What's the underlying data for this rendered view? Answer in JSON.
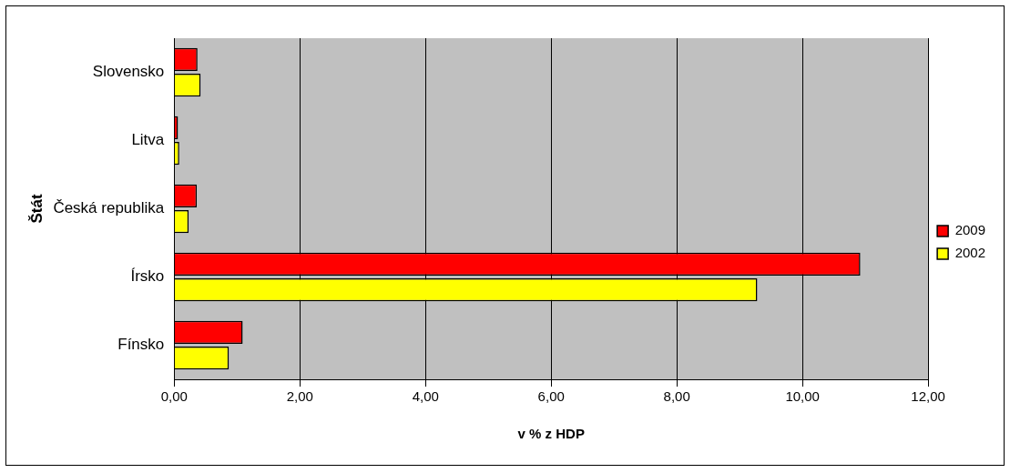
{
  "chart_data": {
    "type": "bar",
    "orientation": "horizontal",
    "xlabel": "v % z HDP",
    "ylabel": "Štát",
    "categories": [
      "Slovensko",
      "Litva",
      "Česká republika",
      "Írsko",
      "Fínsko"
    ],
    "series": [
      {
        "name": "2009",
        "color": "#ff0000",
        "values": [
          0.37,
          0.06,
          0.36,
          10.92,
          1.09
        ]
      },
      {
        "name": "2002",
        "color": "#ffff00",
        "values": [
          0.42,
          0.08,
          0.23,
          9.28,
          0.87
        ]
      }
    ],
    "xlim": [
      0,
      12
    ],
    "xticks": [
      {
        "value": 0,
        "label": "0,00"
      },
      {
        "value": 2,
        "label": "2,00"
      },
      {
        "value": 4,
        "label": "4,00"
      },
      {
        "value": 6,
        "label": "6,00"
      },
      {
        "value": 8,
        "label": "8,00"
      },
      {
        "value": 10,
        "label": "10,00"
      },
      {
        "value": 12,
        "label": "12,00"
      }
    ],
    "grid": "x",
    "legend": "right"
  }
}
